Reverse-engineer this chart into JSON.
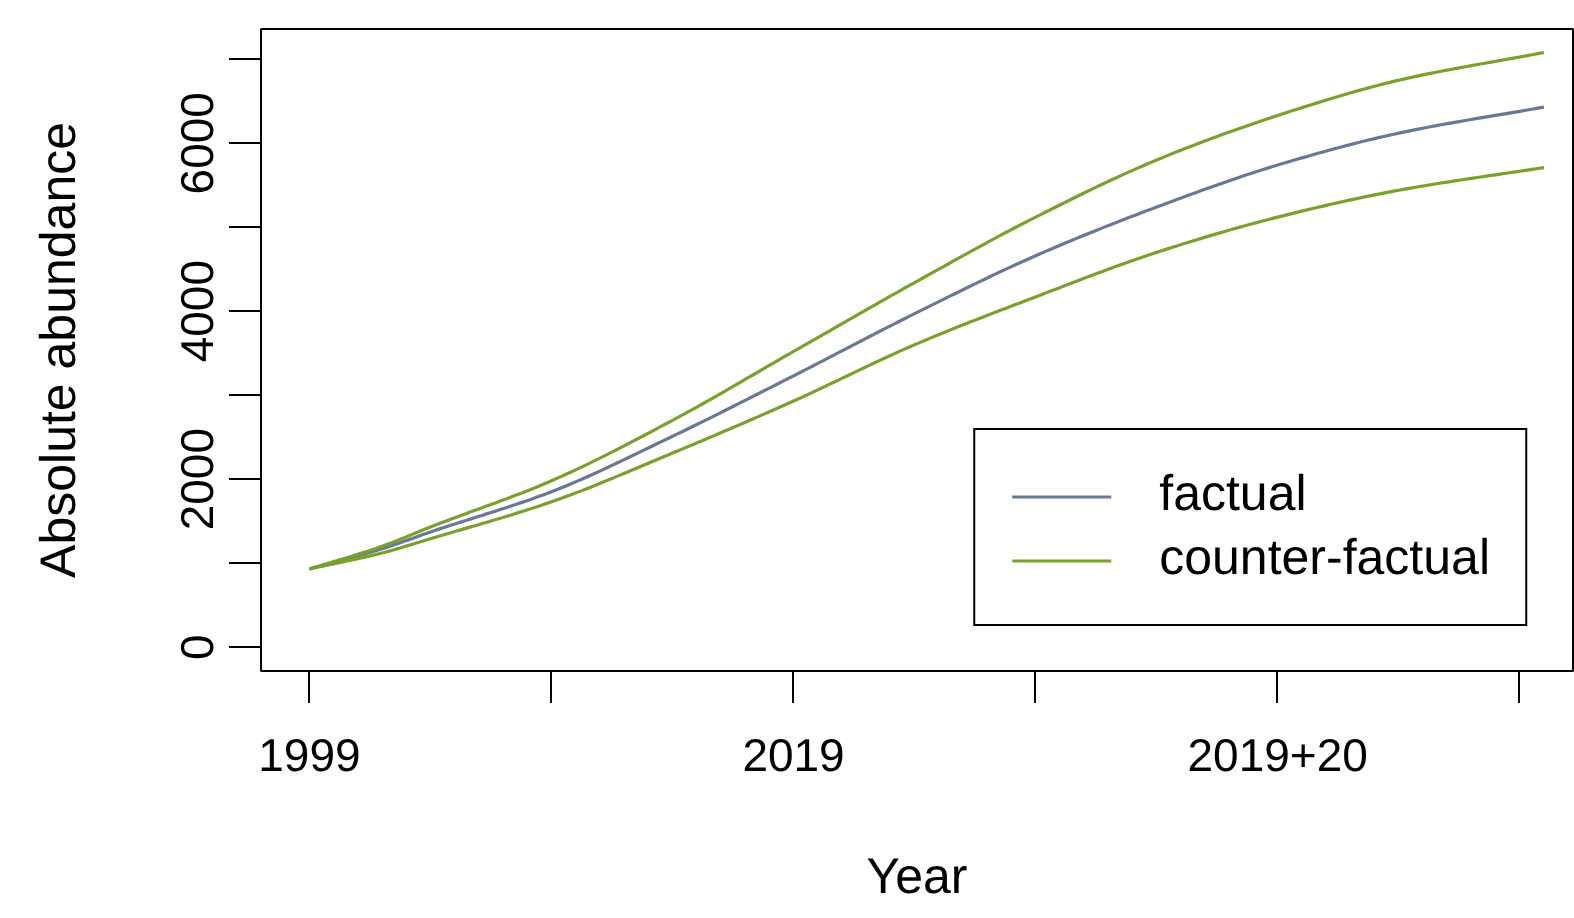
{
  "chart_data": {
    "type": "line",
    "xlabel": "Year",
    "ylabel": "Absolute abundance",
    "xlim": [
      1997,
      2051.2
    ],
    "ylim": [
      -285,
      7360
    ],
    "xticks": [
      1999,
      {
        "value": 2009,
        "label": null
      },
      2019,
      {
        "value": 2029,
        "label": null
      },
      {
        "value": 2039,
        "label": "2019+20"
      },
      {
        "value": 2049,
        "label": null
      }
    ],
    "yticks": [
      0,
      {
        "value": 1000,
        "label": null
      },
      2000,
      {
        "value": 3000,
        "label": null
      },
      4000,
      {
        "value": 5000,
        "label": null
      },
      6000,
      {
        "value": 7000,
        "label": null
      }
    ],
    "x": [
      1999,
      2002,
      2004,
      2009,
      2014,
      2019,
      2024,
      2029,
      2034,
      2039,
      2044,
      2050
    ],
    "series": [
      {
        "name": "factual",
        "color": "#6a7898",
        "values": [
          930,
          1170,
          1370,
          1850,
          2510,
          3230,
          3970,
          4660,
          5240,
          5740,
          6120,
          6430
        ]
      },
      {
        "name": "counter-factual",
        "color": "#78a22a",
        "values": [
          930,
          1200,
          1430,
          1980,
          2700,
          3520,
          4340,
          5120,
          5800,
          6330,
          6750,
          7080
        ]
      },
      {
        "color": "#78a22a",
        "values": [
          930,
          1120,
          1290,
          1730,
          2310,
          2930,
          3600,
          4170,
          4700,
          5120,
          5440,
          5710
        ]
      }
    ],
    "legend": "bottom right"
  }
}
